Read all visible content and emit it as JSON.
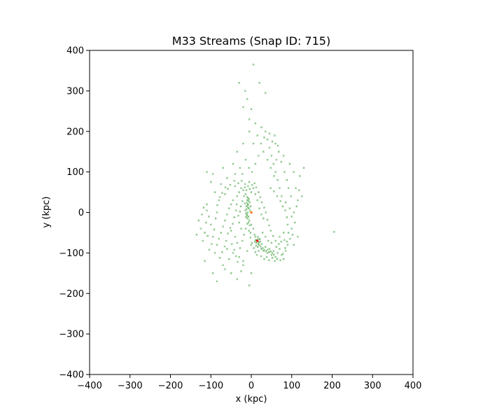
{
  "chart_data": {
    "type": "scatter",
    "title": "M33 Streams (Snap ID: 715)",
    "xlabel": "x (kpc)",
    "ylabel": "y (kpc)",
    "xlim": [
      -400,
      400
    ],
    "ylim": [
      -400,
      400
    ],
    "grid": false,
    "xticks": [
      -400,
      -300,
      -200,
      -100,
      0,
      100,
      200,
      300,
      400
    ],
    "yticks": [
      -400,
      -300,
      -200,
      -100,
      0,
      100,
      200,
      300,
      400
    ],
    "xtick_labels": [
      "−400",
      "−300",
      "−200",
      "−100",
      "0",
      "100",
      "200",
      "300",
      "400"
    ],
    "ytick_labels": [
      "−400",
      "−300",
      "−200",
      "−100",
      "0",
      "100",
      "200",
      "300",
      "400"
    ],
    "series": [
      {
        "color": "#008000",
        "marker": "x",
        "points": [
          [
            -10,
            30
          ],
          [
            -8,
            20
          ],
          [
            -6,
            10
          ],
          [
            -9,
            0
          ],
          [
            -7,
            -10
          ],
          [
            -5,
            -20
          ],
          [
            -3,
            5
          ],
          [
            -12,
            15
          ],
          [
            -4,
            25
          ],
          [
            -11,
            -5
          ],
          [
            -2,
            15
          ],
          [
            -8,
            35
          ],
          [
            -14,
            45
          ],
          [
            -20,
            55
          ],
          [
            -25,
            60
          ],
          [
            -30,
            50
          ],
          [
            -35,
            40
          ],
          [
            -40,
            65
          ],
          [
            -15,
            70
          ],
          [
            -5,
            75
          ],
          [
            5,
            60
          ],
          [
            10,
            45
          ],
          [
            15,
            30
          ],
          [
            20,
            10
          ],
          [
            25,
            -5
          ],
          [
            30,
            -15
          ],
          [
            0,
            50
          ],
          [
            -45,
            30
          ],
          [
            -50,
            20
          ],
          [
            -55,
            10
          ],
          [
            -60,
            -5
          ],
          [
            -65,
            -20
          ],
          [
            -70,
            -35
          ],
          [
            -75,
            -50
          ],
          [
            -80,
            -65
          ],
          [
            -85,
            -80
          ],
          [
            -60,
            -90
          ],
          [
            -45,
            -100
          ],
          [
            -30,
            -110
          ],
          [
            -20,
            -120
          ],
          [
            -10,
            -95
          ],
          [
            0,
            -80
          ],
          [
            -40,
            -60
          ],
          [
            -50,
            -45
          ],
          [
            -30,
            -25
          ],
          [
            -25,
            -40
          ],
          [
            -35,
            -75
          ],
          [
            -55,
            -115
          ],
          [
            -70,
            -130
          ],
          [
            -90,
            -100
          ],
          [
            -95,
            -60
          ],
          [
            -100,
            -30
          ],
          [
            -105,
            -10
          ],
          [
            -110,
            20
          ],
          [
            -90,
            50
          ],
          [
            -75,
            70
          ],
          [
            -60,
            85
          ],
          [
            -100,
            75
          ],
          [
            -115,
            -50
          ],
          [
            -120,
            -70
          ],
          [
            -125,
            -40
          ],
          [
            -85,
            0
          ],
          [
            -80,
            30
          ],
          [
            -65,
            45
          ],
          [
            -110,
            5
          ],
          [
            -95,
            95
          ],
          [
            10,
            -60
          ],
          [
            14,
            -70
          ],
          [
            18,
            -65
          ],
          [
            12,
            -75
          ],
          [
            20,
            -80
          ],
          [
            16,
            -85
          ],
          [
            8,
            -55
          ],
          [
            22,
            -72
          ],
          [
            25,
            -90
          ],
          [
            30,
            -95
          ],
          [
            35,
            -85
          ],
          [
            40,
            -100
          ],
          [
            45,
            -90
          ],
          [
            50,
            -105
          ],
          [
            55,
            -95
          ],
          [
            60,
            -110
          ],
          [
            65,
            -100
          ],
          [
            70,
            -90
          ],
          [
            75,
            -105
          ],
          [
            80,
            -115
          ],
          [
            85,
            -95
          ],
          [
            90,
            -80
          ],
          [
            5,
            -40
          ],
          [
            0,
            -30
          ],
          [
            -2,
            -50
          ],
          [
            28,
            -50
          ],
          [
            35,
            -60
          ],
          [
            42,
            -70
          ],
          [
            50,
            -75
          ],
          [
            60,
            -70
          ],
          [
            70,
            -60
          ],
          [
            80,
            -50
          ],
          [
            90,
            -30
          ],
          [
            100,
            -10
          ],
          [
            95,
            10
          ],
          [
            85,
            25
          ],
          [
            75,
            40
          ],
          [
            70,
            60
          ],
          [
            65,
            80
          ],
          [
            60,
            100
          ],
          [
            55,
            120
          ],
          [
            50,
            140
          ],
          [
            45,
            160
          ],
          [
            40,
            180
          ],
          [
            35,
            200
          ],
          [
            25,
            210
          ],
          [
            15,
            190
          ],
          [
            5,
            170
          ],
          [
            -5,
            200
          ],
          [
            10,
            220
          ],
          [
            30,
            150
          ],
          [
            60,
            170
          ],
          [
            80,
            140
          ],
          [
            95,
            120
          ],
          [
            105,
            100
          ],
          [
            110,
            60
          ],
          [
            115,
            30
          ],
          [
            105,
            0
          ],
          [
            100,
            -40
          ],
          [
            -5,
            230
          ],
          [
            -10,
            280
          ],
          [
            -15,
            300
          ],
          [
            -20,
            260
          ],
          [
            0,
            255
          ],
          [
            -30,
            320
          ],
          [
            5,
            365
          ],
          [
            20,
            320
          ],
          [
            35,
            295
          ],
          [
            -35,
            150
          ],
          [
            -20,
            170
          ],
          [
            -45,
            120
          ],
          [
            -70,
            110
          ],
          [
            -110,
            100
          ],
          [
            120,
            90
          ],
          [
            130,
            110
          ],
          [
            125,
            40
          ],
          [
            115,
            -60
          ],
          [
            105,
            -80
          ],
          [
            -130,
            -20
          ],
          [
            -135,
            -55
          ],
          [
            -115,
            -120
          ],
          [
            -95,
            -150
          ],
          [
            -85,
            -170
          ],
          [
            -50,
            -150
          ],
          [
            -25,
            -145
          ],
          [
            0,
            -150
          ],
          [
            -5,
            -180
          ],
          [
            -20,
            -130
          ],
          [
            -35,
            -165
          ],
          [
            -65,
            -140
          ],
          [
            205,
            -48
          ],
          [
            -15,
            5
          ],
          [
            -13,
            -12
          ],
          [
            -16,
            22
          ],
          [
            -18,
            40
          ],
          [
            -22,
            28
          ],
          [
            -26,
            15
          ],
          [
            -28,
            2
          ],
          [
            -32,
            -8
          ],
          [
            -36,
            20
          ],
          [
            -38,
            5
          ],
          [
            -42,
            -12
          ],
          [
            -46,
            -28
          ],
          [
            -52,
            -38
          ],
          [
            -58,
            -52
          ],
          [
            -62,
            -70
          ],
          [
            -66,
            -84
          ],
          [
            -72,
            -98
          ],
          [
            -78,
            -112
          ],
          [
            -48,
            -78
          ],
          [
            -42,
            -92
          ],
          [
            -38,
            -108
          ],
          [
            -34,
            -122
          ],
          [
            -28,
            -88
          ],
          [
            -22,
            -70
          ],
          [
            -18,
            -55
          ],
          [
            -14,
            -40
          ],
          [
            -10,
            -28
          ],
          [
            -6,
            -45
          ],
          [
            -2,
            -62
          ],
          [
            2,
            -75
          ],
          [
            6,
            -88
          ],
          [
            10,
            -98
          ],
          [
            14,
            -105
          ],
          [
            18,
            -95
          ],
          [
            24,
            -108
          ],
          [
            32,
            -115
          ],
          [
            38,
            -110
          ],
          [
            44,
            -118
          ],
          [
            52,
            -112
          ],
          [
            58,
            -120
          ],
          [
            64,
            -115
          ],
          [
            72,
            -118
          ],
          [
            78,
            -102
          ],
          [
            84,
            -88
          ],
          [
            88,
            -72
          ],
          [
            -12,
            55
          ],
          [
            -16,
            62
          ],
          [
            -8,
            65
          ],
          [
            -4,
            58
          ],
          [
            2,
            68
          ],
          [
            8,
            72
          ],
          [
            12,
            62
          ],
          [
            18,
            50
          ],
          [
            22,
            38
          ],
          [
            26,
            25
          ],
          [
            32,
            12
          ],
          [
            36,
            0
          ],
          [
            40,
            -18
          ],
          [
            44,
            -32
          ],
          [
            48,
            -45
          ],
          [
            54,
            -58
          ],
          [
            62,
            -85
          ],
          [
            68,
            -78
          ],
          [
            74,
            -72
          ],
          [
            82,
            -68
          ],
          [
            -24,
            78
          ],
          [
            -32,
            72
          ],
          [
            -42,
            78
          ],
          [
            -52,
            68
          ],
          [
            -58,
            58
          ],
          [
            -64,
            62
          ],
          [
            -72,
            48
          ],
          [
            -78,
            38
          ],
          [
            -84,
            18
          ],
          [
            -88,
            -15
          ],
          [
            -92,
            -42
          ],
          [
            -98,
            -78
          ],
          [
            -104,
            -92
          ],
          [
            -108,
            -58
          ],
          [
            -112,
            -25
          ],
          [
            -118,
            12
          ],
          [
            -122,
            -5
          ],
          [
            48,
            60
          ],
          [
            56,
            52
          ],
          [
            64,
            40
          ],
          [
            72,
            28
          ],
          [
            78,
            15
          ],
          [
            84,
            5
          ],
          [
            88,
            -12
          ],
          [
            92,
            -50
          ],
          [
            96,
            -65
          ],
          [
            102,
            -55
          ],
          [
            108,
            -25
          ],
          [
            112,
            15
          ],
          [
            118,
            55
          ],
          [
            40,
            130
          ],
          [
            48,
            110
          ],
          [
            56,
            90
          ],
          [
            62,
            130
          ],
          [
            68,
            150
          ],
          [
            74,
            125
          ],
          [
            82,
            100
          ],
          [
            88,
            80
          ],
          [
            92,
            60
          ],
          [
            98,
            40
          ],
          [
            24,
            170
          ],
          [
            32,
            185
          ],
          [
            45,
            195
          ],
          [
            52,
            175
          ],
          [
            58,
            190
          ],
          [
            66,
            165
          ],
          [
            18,
            140
          ],
          [
            10,
            120
          ],
          [
            2,
            100
          ],
          [
            -6,
            110
          ],
          [
            -14,
            130
          ],
          [
            -22,
            95
          ],
          [
            -28,
            110
          ],
          [
            -40,
            95
          ],
          [
            -8,
            12
          ],
          [
            -9,
            18
          ],
          [
            -11,
            24
          ],
          [
            -7,
            28
          ],
          [
            -6,
            33
          ],
          [
            -10,
            38
          ],
          [
            -12,
            8
          ],
          [
            -13,
            -2
          ],
          [
            -11,
            -8
          ],
          [
            -9,
            -15
          ],
          [
            -7,
            -25
          ],
          [
            -4,
            -32
          ],
          [
            13,
            -68
          ],
          [
            15,
            -72
          ],
          [
            17,
            -78
          ],
          [
            11,
            -68
          ],
          [
            19,
            -74
          ],
          [
            21,
            -66
          ],
          [
            16,
            -60
          ],
          [
            12,
            -82
          ],
          [
            9,
            -72
          ],
          [
            23,
            -84
          ],
          [
            26,
            -78
          ],
          [
            28,
            -88
          ],
          [
            32,
            -92
          ],
          [
            36,
            -96
          ],
          [
            40,
            -92
          ],
          [
            44,
            -98
          ],
          [
            48,
            -96
          ],
          [
            52,
            -100
          ],
          [
            56,
            -104
          ]
        ]
      }
    ],
    "markers": [
      {
        "x": 15,
        "y": -70,
        "color": "#e41a1c"
      },
      {
        "x": 0,
        "y": 0,
        "color": "#ff7f0e"
      }
    ]
  }
}
